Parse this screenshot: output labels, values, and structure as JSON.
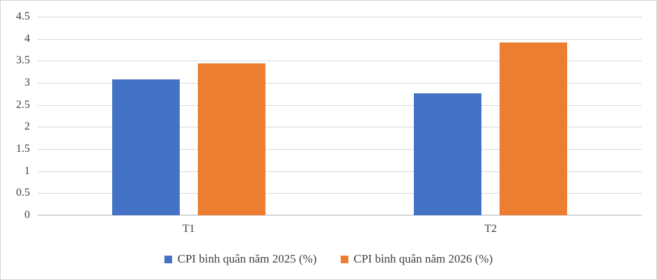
{
  "chart_data": {
    "type": "bar",
    "title": "",
    "xlabel": "",
    "ylabel": "",
    "categories": [
      "T1",
      "T2"
    ],
    "series": [
      {
        "name": "CPI bình quân năm 2025 (%)",
        "color": "#4472C4",
        "values": [
          3.08,
          2.77
        ]
      },
      {
        "name": "CPI bình quân năm 2026 (%)",
        "color": "#ED7D31",
        "values": [
          3.45,
          3.92
        ]
      }
    ],
    "ylim": [
      0,
      4.5
    ],
    "ytick_labels": [
      "0",
      "0.5",
      "1",
      "1.5",
      "2",
      "2.5",
      "3",
      "3.5",
      "4",
      "4.5"
    ],
    "grid": "horizontal",
    "legend_position": "bottom"
  },
  "colors": {
    "background": "#FFFFFF",
    "gridline": "#D9D9D9",
    "axis_text": "#404040",
    "chart_border": "#D3D3D3"
  }
}
